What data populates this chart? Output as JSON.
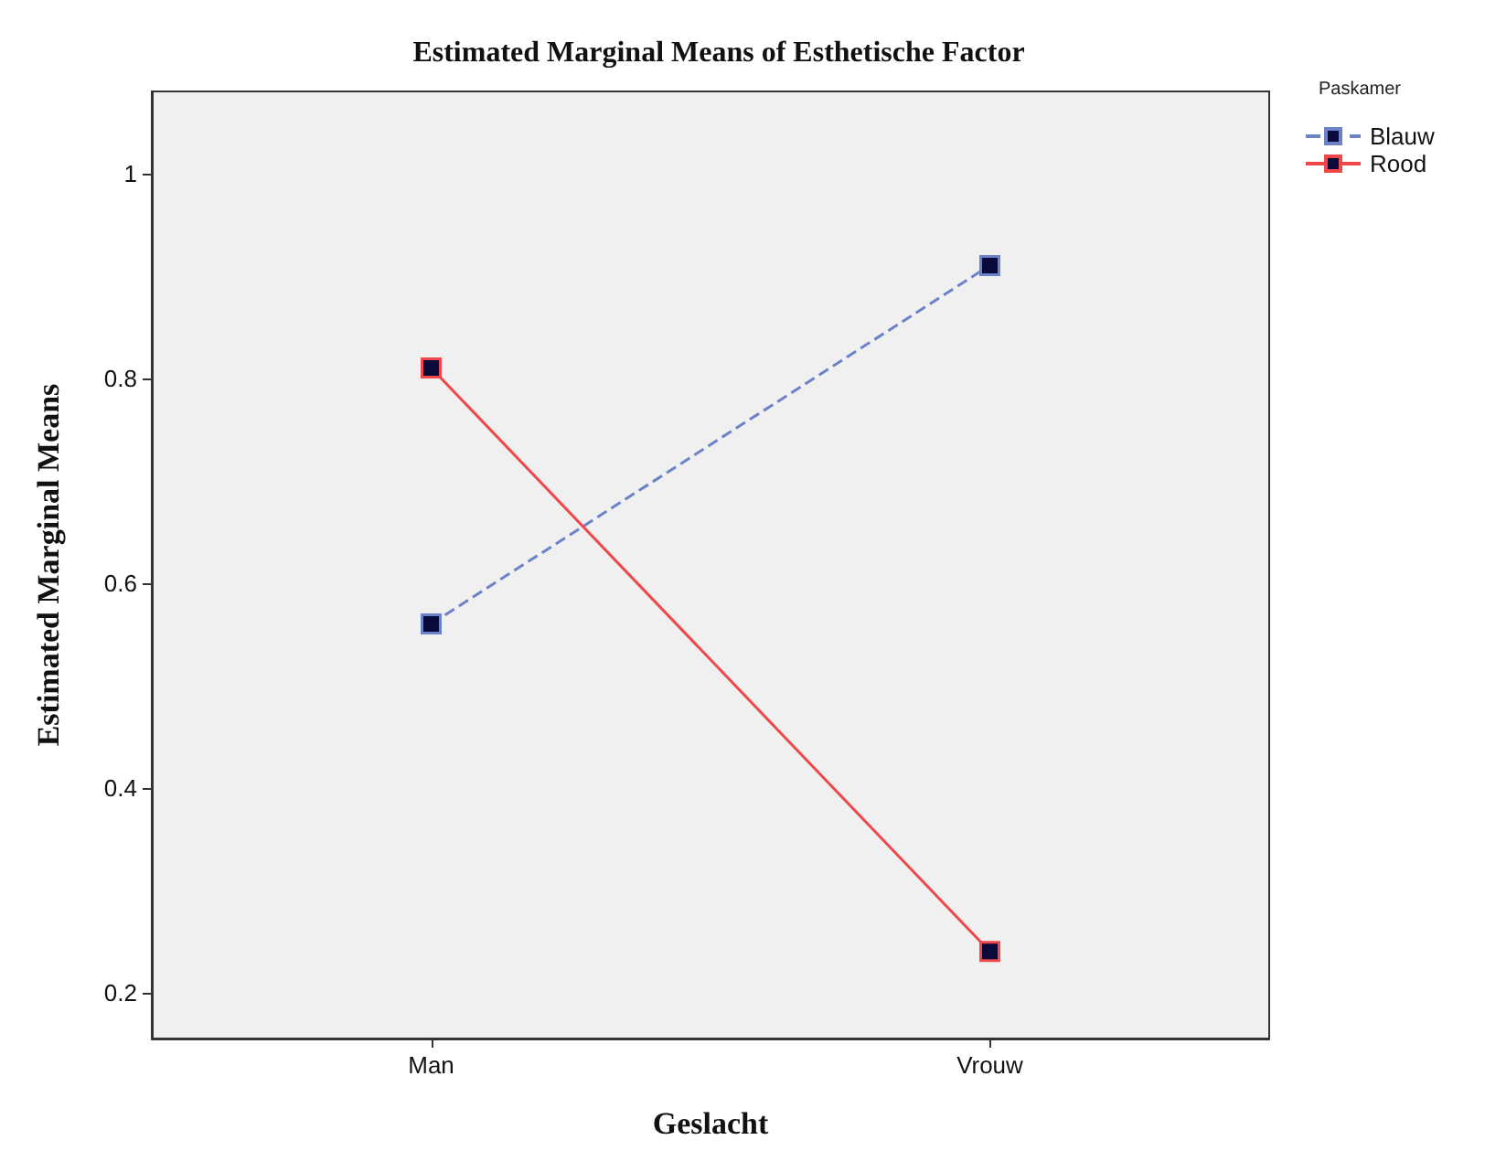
{
  "chart_data": {
    "type": "line",
    "title": "Estimated Marginal Means of Esthetische Factor",
    "xlabel": "Geslacht",
    "ylabel": "Estimated Marginal Means",
    "legend_title": "Paskamer",
    "categories": [
      "Man",
      "Vrouw"
    ],
    "series": [
      {
        "name": "Blauw",
        "color": "#6b82c8",
        "line_style": "dashed",
        "values": [
          0.56,
          0.91
        ]
      },
      {
        "name": "Rood",
        "color": "#f0484a",
        "line_style": "solid",
        "values": [
          0.81,
          0.24
        ]
      }
    ],
    "ylim": [
      0.155,
      1.08
    ],
    "yticks": [
      0.2,
      0.4,
      0.6,
      0.8,
      1
    ],
    "grid": false,
    "legend": "top right",
    "marker": "square"
  }
}
